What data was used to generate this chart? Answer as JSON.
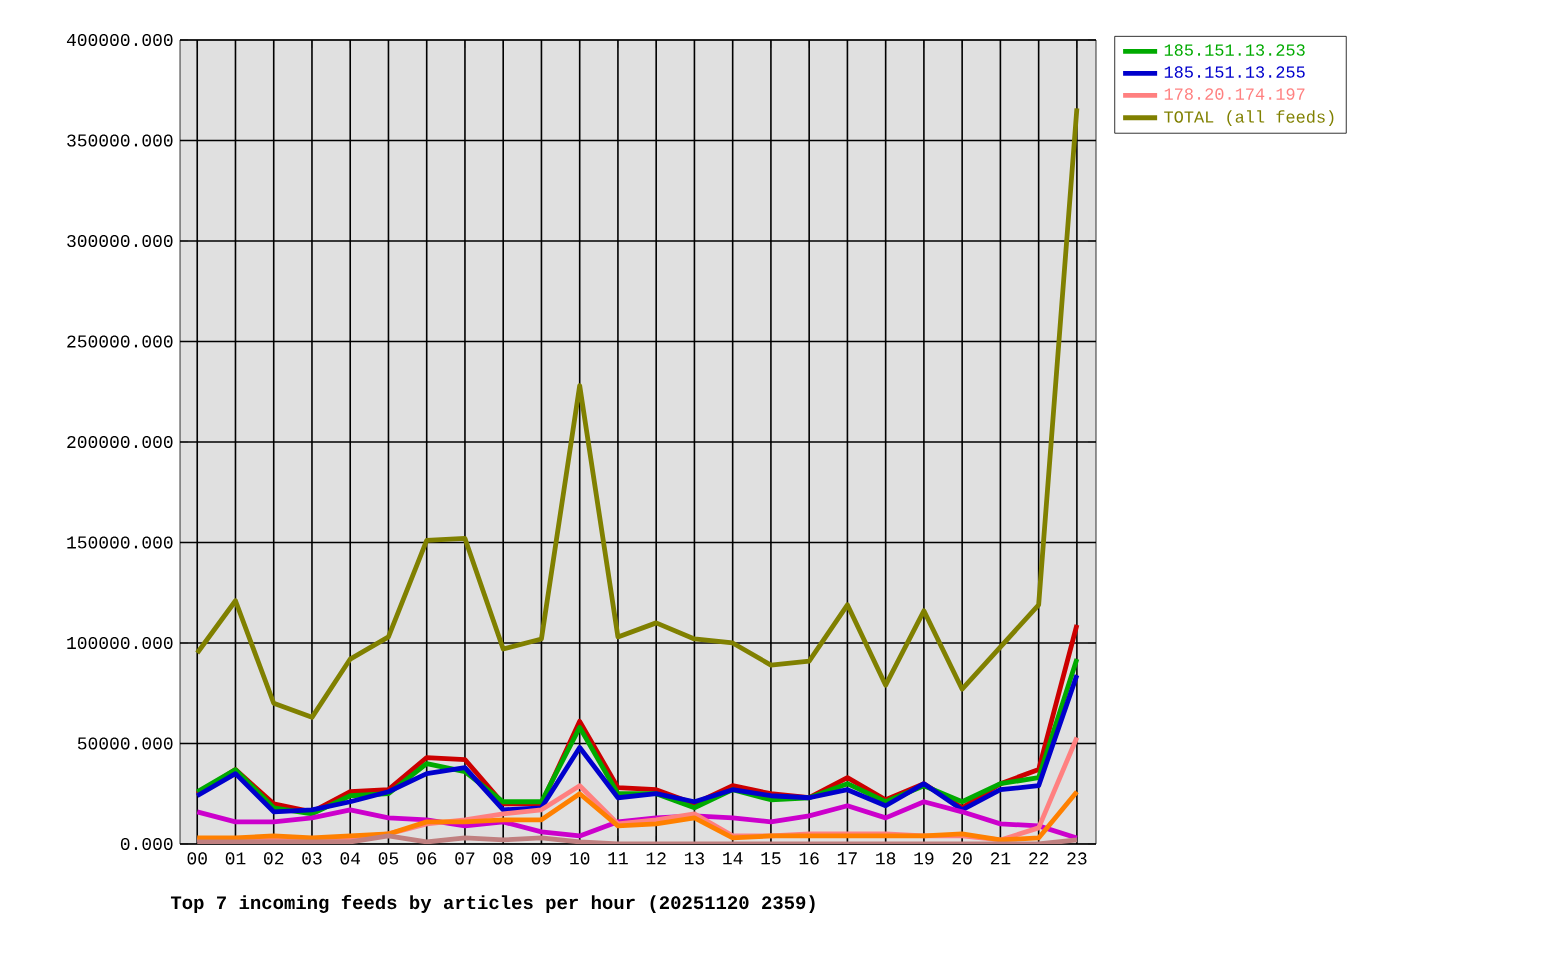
{
  "chart_data": {
    "type": "line",
    "title": "Top 7 incoming feeds by articles per hour (20251120 2359)",
    "categories": [
      "00",
      "01",
      "02",
      "03",
      "04",
      "05",
      "06",
      "07",
      "08",
      "09",
      "10",
      "11",
      "12",
      "13",
      "14",
      "15",
      "16",
      "17",
      "18",
      "19",
      "20",
      "21",
      "22",
      "23"
    ],
    "ylim": [
      0,
      400000
    ],
    "yticks": [
      {
        "value": 0,
        "label": "0.000"
      },
      {
        "value": 50000,
        "label": "50000.000"
      },
      {
        "value": 100000,
        "label": "100000.000"
      },
      {
        "value": 150000,
        "label": "150000.000"
      },
      {
        "value": 200000,
        "label": "200000.000"
      },
      {
        "value": 250000,
        "label": "250000.000"
      },
      {
        "value": 300000,
        "label": "300000.000"
      },
      {
        "value": 350000,
        "label": "350000.000"
      },
      {
        "value": 400000,
        "label": "400000.000"
      }
    ],
    "grid": true,
    "legend": "right",
    "marker": "none",
    "line_style": "solid",
    "series": [
      {
        "color": "#cc0000",
        "values": [
          25000,
          37000,
          20000,
          16000,
          26000,
          27000,
          43000,
          42000,
          20000,
          20000,
          61000,
          28000,
          27000,
          20000,
          29000,
          25000,
          23000,
          33000,
          22000,
          30000,
          18000,
          30000,
          37000,
          109000
        ]
      },
      {
        "name": "185.151.13.253",
        "color": "#00aa00",
        "values": [
          26000,
          37000,
          18000,
          15000,
          24000,
          25000,
          40000,
          36000,
          21000,
          21000,
          58000,
          25000,
          25000,
          18000,
          27000,
          22000,
          23000,
          30000,
          21000,
          29000,
          21000,
          30000,
          33000,
          92000
        ]
      },
      {
        "name": "185.151.13.255",
        "color": "#0000cc",
        "values": [
          24000,
          35000,
          16000,
          17000,
          21000,
          26000,
          35000,
          38000,
          17000,
          18000,
          48000,
          23000,
          25000,
          21000,
          27000,
          24000,
          23000,
          27000,
          19000,
          30000,
          17000,
          27000,
          29000,
          84000
        ]
      },
      {
        "color": "#cc00cc",
        "values": [
          16000,
          11000,
          11000,
          13000,
          17000,
          13000,
          12000,
          9000,
          11000,
          6000,
          4000,
          11000,
          13000,
          14000,
          13000,
          11000,
          14000,
          19000,
          13000,
          21000,
          16000,
          10000,
          9000,
          3000
        ]
      },
      {
        "name": "178.20.174.197",
        "color": "#ff8080",
        "values": [
          2000,
          2000,
          2000,
          2000,
          3000,
          5000,
          10000,
          12000,
          15000,
          17000,
          29000,
          10000,
          12000,
          15000,
          4000,
          4000,
          5000,
          5000,
          5000,
          4000,
          4000,
          2000,
          8000,
          53000
        ]
      },
      {
        "color": "#ff8000",
        "values": [
          3000,
          3000,
          4000,
          3000,
          4000,
          5000,
          11000,
          11000,
          12000,
          12000,
          25000,
          9000,
          10000,
          13000,
          3000,
          4000,
          4000,
          4000,
          4000,
          4000,
          5000,
          2000,
          3000,
          26000
        ]
      },
      {
        "color": "#c08080",
        "values": [
          1000,
          1000,
          1000,
          1000,
          1000,
          4000,
          1000,
          3000,
          2000,
          3000,
          1000,
          0,
          0,
          0,
          0,
          0,
          0,
          0,
          0,
          0,
          0,
          0,
          0,
          2000
        ]
      },
      {
        "name": "TOTAL (all feeds)",
        "color": "#808000",
        "values": [
          95000,
          121000,
          70000,
          63000,
          92000,
          103000,
          151000,
          152000,
          97000,
          102000,
          228000,
          103000,
          110000,
          102000,
          100000,
          89000,
          91000,
          119000,
          79000,
          116000,
          77000,
          98000,
          119000,
          366000
        ]
      }
    ]
  }
}
